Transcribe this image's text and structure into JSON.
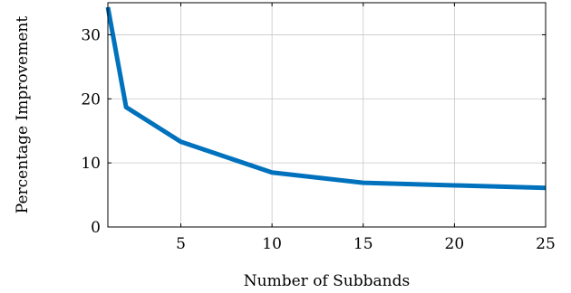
{
  "chart_data": {
    "type": "line",
    "title": "",
    "xlabel": "Number of Subbands",
    "ylabel": "Percentage Improvement",
    "xlim": [
      1,
      25
    ],
    "ylim": [
      0,
      35
    ],
    "xticks": [
      5,
      10,
      15,
      20,
      25
    ],
    "yticks": [
      0,
      10,
      20,
      30
    ],
    "grid": true,
    "series": [
      {
        "color": "#0072bd",
        "x": [
          1,
          2,
          5,
          10,
          15,
          20,
          25
        ],
        "y": [
          34.3,
          18.7,
          13.3,
          8.5,
          6.9,
          6.5,
          6.1
        ]
      }
    ]
  }
}
